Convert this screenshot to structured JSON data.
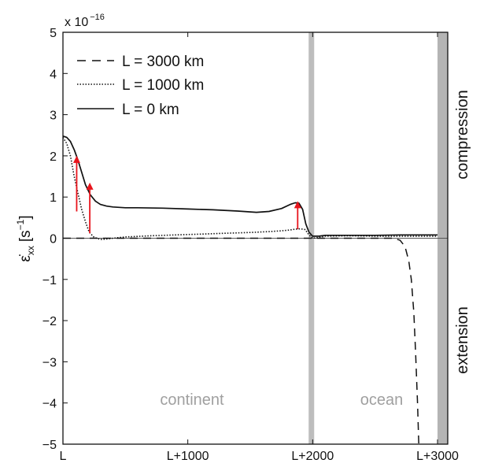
{
  "chart_data": {
    "type": "line",
    "ylim": [
      -5,
      5
    ],
    "xlim": [
      0,
      3000
    ],
    "y_multiplier": {
      "base": "x 10",
      "exponent": "−16"
    },
    "yticks": [
      "5",
      "4",
      "3",
      "2",
      "1",
      "0",
      "−1",
      "−2",
      "−3",
      "−4",
      "−5"
    ],
    "xticks": [
      {
        "x": 0,
        "label": "L"
      },
      {
        "x": 1000,
        "label": "L+1000"
      },
      {
        "x": 2000,
        "label": "L+2000"
      },
      {
        "x": 3000,
        "label": "L+3000"
      }
    ],
    "ylabel": {
      "main": "ε̇",
      "sub": "xx",
      "units": "[s",
      "units_sup": "−1",
      "units_end": "]"
    },
    "legend": [
      {
        "label": "L = 3000 km",
        "style": "dashed"
      },
      {
        "label": "L = 1000 km",
        "style": "dotted"
      },
      {
        "label": "L = 0 km",
        "style": "solid"
      }
    ],
    "regions": {
      "continent": "continent",
      "ocean": "ocean",
      "boundary_x": 1990
    },
    "side_labels": {
      "top": "compression",
      "bottom": "extension"
    },
    "series": [
      {
        "name": "L = 3000 km",
        "style": "dashed",
        "x": [
          0,
          2650,
          2700,
          2740,
          2770,
          2790,
          2810,
          2825,
          2840,
          2850
        ],
        "y": [
          0,
          0,
          -0.05,
          -0.2,
          -0.55,
          -1.0,
          -1.8,
          -2.8,
          -4.0,
          -5.0
        ]
      },
      {
        "name": "L = 1000 km",
        "style": "dotted",
        "x": [
          0,
          30,
          60,
          90,
          120,
          150,
          180,
          210,
          250,
          300,
          350,
          400,
          500,
          700,
          900,
          1100,
          1300,
          1500,
          1650,
          1750,
          1820,
          1860,
          1900,
          1940,
          1970,
          2000,
          2050,
          2100,
          2300,
          2500,
          2700,
          2900,
          3000
        ],
        "y": [
          2.45,
          2.3,
          2.0,
          1.5,
          1.1,
          0.7,
          0.4,
          0.15,
          0.02,
          -0.03,
          -0.02,
          0.0,
          0.03,
          0.06,
          0.08,
          0.1,
          0.12,
          0.14,
          0.16,
          0.18,
          0.2,
          0.22,
          0.23,
          0.21,
          0.08,
          0.0,
          0.02,
          0.05,
          0.06,
          0.05,
          0.05,
          0.05,
          0.05
        ]
      },
      {
        "name": "L = 0 km",
        "style": "solid",
        "x": [
          0,
          30,
          60,
          90,
          120,
          150,
          180,
          220,
          260,
          300,
          350,
          400,
          500,
          600,
          800,
          1000,
          1200,
          1400,
          1550,
          1650,
          1750,
          1820,
          1860,
          1890,
          1920,
          1945,
          1970,
          2000,
          2050,
          2100,
          2300,
          2500,
          2700,
          2900,
          3000
        ],
        "y": [
          2.48,
          2.45,
          2.35,
          2.15,
          1.9,
          1.6,
          1.3,
          1.05,
          0.9,
          0.82,
          0.78,
          0.76,
          0.74,
          0.74,
          0.73,
          0.71,
          0.69,
          0.66,
          0.63,
          0.65,
          0.72,
          0.82,
          0.86,
          0.85,
          0.7,
          0.35,
          0.15,
          0.05,
          0.05,
          0.07,
          0.07,
          0.07,
          0.08,
          0.08,
          0.08
        ]
      }
    ],
    "arrows": [
      {
        "x": 110,
        "y0": 0.65,
        "y1": 2.0
      },
      {
        "x": 215,
        "y0": 0.12,
        "y1": 1.35
      },
      {
        "x": 1880,
        "y0": 0.22,
        "y1": 0.9
      }
    ],
    "colors": {
      "arrow": "#e8141c",
      "boundary": "#bdbdbd",
      "side_band": "#b4b4b4",
      "region_text": "#a0a0a0"
    }
  }
}
